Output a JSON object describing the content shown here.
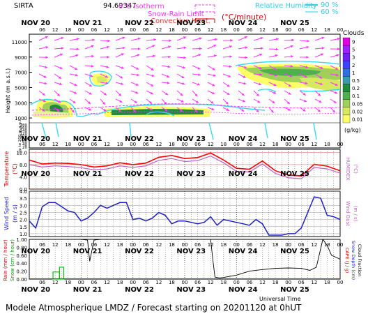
{
  "header": {
    "station": "SIRTA",
    "coords": "94.69347",
    "leg_iso": "0°C isotherm",
    "leg_snow": "Snow-Rain Limit",
    "leg_conv": "Convective Heat.",
    "leg_conv_unit": "(°C/minute)",
    "leg_rh": "Relative Humidity",
    "rh_90": "90 %",
    "rh_60": "60 %"
  },
  "footer": {
    "title": "Modele Atmospherique LMDZ / Forecast starting on 20201120 at 0hUT",
    "xlabel": "Universal Time"
  },
  "colors": {
    "arrow": "#ff33ff",
    "iso": "#ff33ff",
    "rh": "#33ddee",
    "temp": "#ff0000",
    "humidex": "#c060c0",
    "wind": "#1c1ccc",
    "rain": "#ff0000",
    "snow": "#00c800",
    "cape": "#000000"
  },
  "chart_data": {
    "type": "meteogram",
    "days": [
      "NOV 20",
      "NOV 21",
      "NOV 22",
      "NOV 23",
      "NOV 24",
      "NOV 25"
    ],
    "hour_ticks": [
      "06",
      "12",
      "18",
      "00"
    ],
    "clouds": {
      "ylabel": "Height (m a.s.l.)",
      "ylabel2": "Up to 200 m a.g.l.",
      "yticks_upper": [
        "11000",
        "9000",
        "7000",
        "5000",
        "3000",
        "1000"
      ],
      "yticks_lower": [
        "180",
        "160",
        "140",
        "120",
        "100",
        "80",
        "60",
        "40",
        "20"
      ],
      "colorbar_title": "Clouds",
      "colorbar_unit": "(g/kg)",
      "colorbar_labels": [
        "9",
        "5",
        "3",
        "2",
        "1",
        "0.5",
        "0.2",
        "0.1",
        "0.05",
        "0.02",
        "0.01"
      ],
      "colorbar_colors": [
        "#e000e0",
        "#a020ff",
        "#7020f0",
        "#4040ff",
        "#2f6fe0",
        "#3a9ab0",
        "#1e8c3a",
        "#4fb04f",
        "#9ed05a",
        "#d8e860",
        "#ffff66"
      ]
    },
    "temperature": {
      "ylabel": "Temperature",
      "yunit": "(°C)",
      "ylabel_right": "HUMIDEX",
      "yunit_right": "(°C)",
      "yticks": [
        "12.0",
        "8.0",
        "4.0",
        "0.0"
      ],
      "ylim": [
        0,
        13
      ],
      "hours": [
        0,
        6,
        12,
        18,
        24,
        30,
        36,
        42,
        48,
        54,
        60,
        66,
        72,
        78,
        84,
        90,
        96,
        102,
        108,
        114,
        120,
        126,
        132,
        138,
        144
      ],
      "temp": [
        9.5,
        8.2,
        8.5,
        8.4,
        8.0,
        7.2,
        7.6,
        8.6,
        8.0,
        8.5,
        10.4,
        11.0,
        10.0,
        10.3,
        11.8,
        9.5,
        6.8,
        6.5,
        9.2,
        6.0,
        4.6,
        4.3,
        8.1,
        7.5,
        6.0
      ],
      "humidex": [
        8.0,
        7.2,
        7.6,
        7.4,
        7.0,
        6.3,
        6.6,
        7.6,
        7.1,
        7.6,
        9.4,
        10.0,
        9.0,
        9.3,
        10.8,
        8.6,
        5.8,
        5.6,
        8.2,
        5.1,
        3.7,
        3.4,
        7.1,
        6.6,
        5.2
      ]
    },
    "wind": {
      "ylabel": "Wind Speed",
      "yunit": "(m / s)",
      "ylabel_right": "Wind Gust",
      "yunit_right": "(m / s)",
      "yticks": [
        "4.0",
        "3.5",
        "3.0",
        "2.5",
        "2.0",
        "1.5",
        "1.0"
      ],
      "ylim": [
        0.8,
        4.0
      ],
      "hours": [
        0,
        3,
        6,
        9,
        12,
        15,
        18,
        21,
        24,
        27,
        30,
        33,
        36,
        39,
        42,
        45,
        48,
        51,
        54,
        57,
        60,
        63,
        66,
        69,
        72,
        75,
        78,
        81,
        84,
        87,
        90,
        93,
        96,
        99,
        102,
        105,
        108,
        111,
        114,
        117,
        120,
        123,
        126,
        129,
        132,
        135,
        138,
        141,
        144
      ],
      "speed": [
        1.9,
        1.4,
        2.9,
        3.2,
        3.2,
        2.9,
        2.6,
        2.5,
        1.9,
        2.1,
        2.5,
        3.0,
        2.8,
        3.0,
        3.2,
        3.2,
        2.0,
        2.1,
        1.9,
        2.1,
        2.5,
        2.3,
        1.7,
        1.9,
        1.9,
        1.8,
        1.7,
        1.8,
        2.2,
        1.6,
        2.0,
        1.9,
        1.8,
        1.7,
        1.6,
        2.0,
        1.7,
        0.9,
        0.9,
        0.9,
        1.0,
        1.0,
        1.4,
        2.5,
        3.6,
        3.5,
        2.3,
        2.2,
        2.0
      ]
    },
    "precip": {
      "ylabel_rain": "Rain (mm / hour)",
      "ylabel_snow": "Snow (cm / hour)",
      "ylabel_right": "CAPE (J / g)",
      "ylabel_right2": "Snow Depth (cm)",
      "ylabel_right3": "Cloud Fraction",
      "yticks": [
        "1.00",
        "0.80",
        "0.60",
        "0.40",
        "0.20",
        "0.00"
      ],
      "ylim": [
        0,
        1.0
      ],
      "snow_blocks": [
        {
          "start": 11,
          "end": 14,
          "value": 0.18
        },
        {
          "start": 14,
          "end": 16,
          "value": 0.3
        }
      ],
      "cloud_fraction_hours": [
        0,
        6,
        12,
        18,
        24,
        27,
        28,
        30,
        33,
        36,
        42,
        48,
        54,
        60,
        66,
        72,
        78,
        81,
        84,
        85,
        86,
        88,
        90,
        96,
        102,
        108,
        114,
        120,
        126,
        130,
        133,
        136,
        138,
        140,
        144
      ],
      "cloud_fraction": [
        1.0,
        1.0,
        1.0,
        1.0,
        1.0,
        0.98,
        0.45,
        0.98,
        1.0,
        1.0,
        1.0,
        1.0,
        1.0,
        1.0,
        1.0,
        1.0,
        1.0,
        1.0,
        1.0,
        0.5,
        0.05,
        0.03,
        0.04,
        0.1,
        0.2,
        0.24,
        0.27,
        0.28,
        0.27,
        0.22,
        0.3,
        1.0,
        0.85,
        0.6,
        0.5
      ]
    }
  }
}
